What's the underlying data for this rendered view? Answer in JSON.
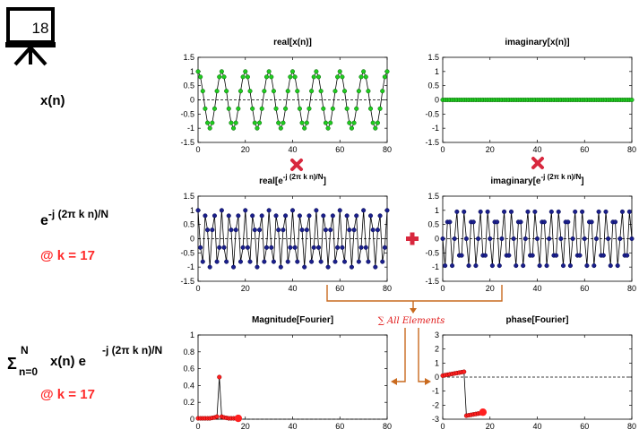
{
  "slide": {
    "number": "18"
  },
  "rows": {
    "xn": {
      "label": "x(n)"
    },
    "kernel": {
      "base": "e",
      "exponent": "-j (2π k n)/N",
      "k_note": "@ k = 17"
    },
    "sum": {
      "sigma": "Σ",
      "upper": "N",
      "lower": "n=0",
      "body": "x(n) e",
      "exponent": "-j (2π k n)/N",
      "k_note": "@ k = 17"
    }
  },
  "annotations": {
    "sum_all": "∑ All Elements"
  },
  "colors": {
    "green": "#1fcc1f",
    "navy": "#1a1f8c",
    "red": "#ff2020",
    "orange": "#c96a1e",
    "cross": "#d8283e"
  },
  "chart_data": [
    {
      "id": "real-xn",
      "type": "line",
      "title": "real[x(n)]",
      "xlim": [
        0,
        80
      ],
      "ylim": [
        -1.5,
        1.5
      ],
      "xticks": [
        "0",
        "20",
        "40",
        "60",
        "80"
      ],
      "yticks": [
        "1.5",
        "1",
        "0.5",
        "0",
        "-0.5",
        "-1",
        "-1.5"
      ],
      "series": [
        {
          "x": [
            0,
            1,
            2,
            3,
            4,
            5,
            6,
            7,
            8,
            9,
            10,
            11,
            12,
            13,
            14,
            15,
            16,
            17,
            18,
            19,
            20,
            21,
            22,
            23,
            24,
            25,
            26,
            27,
            28,
            29,
            30,
            31,
            32,
            33,
            34,
            35,
            36,
            37,
            38,
            39,
            40,
            41,
            42,
            43,
            44,
            45,
            46,
            47,
            48,
            49,
            50,
            51,
            52,
            53,
            54,
            55,
            56,
            57,
            58,
            59,
            60,
            61,
            62,
            63,
            64,
            65,
            66,
            67,
            68,
            69,
            70,
            71,
            72,
            73,
            74,
            75,
            76,
            77,
            78,
            79,
            80
          ],
          "y": [
            1,
            0.81,
            0.31,
            -0.31,
            -0.81,
            -1,
            -0.81,
            -0.31,
            0.31,
            0.81,
            1,
            0.81,
            0.31,
            -0.31,
            -0.81,
            -1,
            -0.81,
            -0.31,
            0.31,
            0.81,
            1,
            0.81,
            0.31,
            -0.31,
            -0.81,
            -1,
            -0.81,
            -0.31,
            0.31,
            0.81,
            1,
            0.81,
            0.31,
            -0.31,
            -0.81,
            -1,
            -0.81,
            -0.31,
            0.31,
            0.81,
            1,
            0.81,
            0.31,
            -0.31,
            -0.81,
            -1,
            -0.81,
            -0.31,
            0.31,
            0.81,
            1,
            0.81,
            0.31,
            -0.31,
            -0.81,
            -1,
            -0.81,
            -0.31,
            0.31,
            0.81,
            1,
            0.81,
            0.31,
            -0.31,
            -0.81,
            -1,
            -0.81,
            -0.31,
            0.31,
            0.81,
            1,
            0.81,
            0.31,
            -0.31,
            -0.81,
            -1,
            -0.81,
            -0.31,
            0.31,
            0.81,
            1
          ]
        }
      ]
    },
    {
      "id": "imag-xn",
      "type": "line",
      "title": "imaginary[x(n)]",
      "xlim": [
        0,
        80
      ],
      "ylim": [
        -1.5,
        1.5
      ],
      "xticks": [
        "0",
        "20",
        "40",
        "60",
        "80"
      ],
      "yticks": [
        "1.5",
        "1",
        "0.5",
        "0",
        "-0.5",
        "-1",
        "-1.5"
      ],
      "series": [
        {
          "x": [
            0,
            1,
            2,
            3,
            4,
            5,
            6,
            7,
            8,
            9,
            10,
            11,
            12,
            13,
            14,
            15,
            16,
            17,
            18,
            19,
            20,
            21,
            22,
            23,
            24,
            25,
            26,
            27,
            28,
            29,
            30,
            31,
            32,
            33,
            34,
            35,
            36,
            37,
            38,
            39,
            40,
            41,
            42,
            43,
            44,
            45,
            46,
            47,
            48,
            49,
            50,
            51,
            52,
            53,
            54,
            55,
            56,
            57,
            58,
            59,
            60,
            61,
            62,
            63,
            64,
            65,
            66,
            67,
            68,
            69,
            70,
            71,
            72,
            73,
            74,
            75,
            76,
            77,
            78,
            79,
            80
          ],
          "y": [
            0,
            0,
            0,
            0,
            0,
            0,
            0,
            0,
            0,
            0,
            0,
            0,
            0,
            0,
            0,
            0,
            0,
            0,
            0,
            0,
            0,
            0,
            0,
            0,
            0,
            0,
            0,
            0,
            0,
            0,
            0,
            0,
            0,
            0,
            0,
            0,
            0,
            0,
            0,
            0,
            0,
            0,
            0,
            0,
            0,
            0,
            0,
            0,
            0,
            0,
            0,
            0,
            0,
            0,
            0,
            0,
            0,
            0,
            0,
            0,
            0,
            0,
            0,
            0,
            0,
            0,
            0,
            0,
            0,
            0,
            0,
            0,
            0,
            0,
            0,
            0,
            0,
            0,
            0,
            0,
            0
          ]
        }
      ]
    },
    {
      "id": "real-kernel",
      "type": "line",
      "title": {
        "prefix": "real[e",
        "sup": "-j (2π k n)/N",
        "suffix": "]"
      },
      "xlim": [
        0,
        80
      ],
      "ylim": [
        -1.5,
        1.5
      ],
      "xticks": [
        "0",
        "20",
        "40",
        "60",
        "80"
      ],
      "yticks": [
        "1.5",
        "1",
        "0.5",
        "0",
        "-0.5",
        "-1",
        "-1.5"
      ],
      "series": [
        {
          "x": [
            0,
            1,
            2,
            3,
            4,
            5,
            6,
            7,
            8,
            9,
            10,
            11,
            12,
            13,
            14,
            15,
            16,
            17,
            18,
            19,
            20,
            21,
            22,
            23,
            24,
            25,
            26,
            27,
            28,
            29,
            30,
            31,
            32,
            33,
            34,
            35,
            36,
            37,
            38,
            39,
            40,
            41,
            42,
            43,
            44,
            45,
            46,
            47,
            48,
            49,
            50,
            51,
            52,
            53,
            54,
            55,
            56,
            57,
            58,
            59,
            60,
            61,
            62,
            63,
            64,
            65,
            66,
            67,
            68,
            69,
            70,
            71,
            72,
            73,
            74,
            75,
            76,
            77,
            78,
            79,
            80
          ],
          "y": [
            1,
            -0.31,
            -0.81,
            0.81,
            0.31,
            -1,
            0.31,
            0.81,
            -0.81,
            -0.31,
            1,
            -0.31,
            -0.81,
            0.81,
            0.31,
            -1,
            0.31,
            0.81,
            -0.81,
            -0.31,
            1,
            -0.31,
            -0.81,
            0.81,
            0.31,
            -1,
            0.31,
            0.81,
            -0.81,
            -0.31,
            1,
            -0.31,
            -0.81,
            0.81,
            0.31,
            -1,
            0.31,
            0.81,
            -0.81,
            -0.31,
            1,
            -0.31,
            -0.81,
            0.81,
            0.31,
            -1,
            0.31,
            0.81,
            -0.81,
            -0.31,
            1,
            -0.31,
            -0.81,
            0.81,
            0.31,
            -1,
            0.31,
            0.81,
            -0.81,
            -0.31,
            1,
            -0.31,
            -0.81,
            0.81,
            0.31,
            -1,
            0.31,
            0.81,
            -0.81,
            -0.31,
            1,
            -0.31,
            -0.81,
            0.81,
            0.31,
            -1,
            0.31,
            0.81,
            -0.81,
            -0.31,
            1
          ]
        }
      ]
    },
    {
      "id": "imag-kernel",
      "type": "line",
      "title": {
        "prefix": "imaginary[e",
        "sup": "-j (2π k n)/N",
        "suffix": "]"
      },
      "xlim": [
        0,
        80
      ],
      "ylim": [
        -1.5,
        1.5
      ],
      "xticks": [
        "0",
        "20",
        "40",
        "60",
        "80"
      ],
      "yticks": [
        "1.5",
        "1",
        "0.5",
        "0",
        "-0.5",
        "-1",
        "-1.5"
      ],
      "series": [
        {
          "x": [
            0,
            1,
            2,
            3,
            4,
            5,
            6,
            7,
            8,
            9,
            10,
            11,
            12,
            13,
            14,
            15,
            16,
            17,
            18,
            19,
            20,
            21,
            22,
            23,
            24,
            25,
            26,
            27,
            28,
            29,
            30,
            31,
            32,
            33,
            34,
            35,
            36,
            37,
            38,
            39,
            40,
            41,
            42,
            43,
            44,
            45,
            46,
            47,
            48,
            49,
            50,
            51,
            52,
            53,
            54,
            55,
            56,
            57,
            58,
            59,
            60,
            61,
            62,
            63,
            64,
            65,
            66,
            67,
            68,
            69,
            70,
            71,
            72,
            73,
            74,
            75,
            76,
            77,
            78,
            79,
            80
          ],
          "y": [
            0,
            -0.95,
            0.59,
            0.59,
            -0.95,
            0,
            0.95,
            -0.59,
            -0.59,
            0.95,
            0,
            -0.95,
            0.59,
            0.59,
            -0.95,
            0,
            0.95,
            -0.59,
            -0.59,
            0.95,
            0,
            -0.95,
            0.59,
            0.59,
            -0.95,
            0,
            0.95,
            -0.59,
            -0.59,
            0.95,
            0,
            -0.95,
            0.59,
            0.59,
            -0.95,
            0,
            0.95,
            -0.59,
            -0.59,
            0.95,
            0,
            -0.95,
            0.59,
            0.59,
            -0.95,
            0,
            0.95,
            -0.59,
            -0.59,
            0.95,
            0,
            -0.95,
            0.59,
            0.59,
            -0.95,
            0,
            0.95,
            -0.59,
            -0.59,
            0.95,
            0,
            -0.95,
            0.59,
            0.59,
            -0.95,
            0,
            0.95,
            -0.59,
            -0.59,
            0.95,
            0,
            -0.95,
            0.59,
            0.59,
            -0.95,
            0,
            0.95,
            -0.59,
            -0.59,
            0.95,
            0
          ]
        }
      ]
    },
    {
      "id": "magnitude",
      "type": "line",
      "title": "Magnitude[Fourier]",
      "xlim": [
        0,
        80
      ],
      "ylim": [
        0,
        1
      ],
      "xticks": [
        "0",
        "20",
        "40",
        "60",
        "80"
      ],
      "yticks": [
        "1",
        "0.8",
        "0.6",
        "0.4",
        "0.2",
        "0"
      ],
      "series": [
        {
          "x": [
            0,
            1,
            2,
            3,
            4,
            5,
            6,
            7,
            8,
            9,
            10,
            11,
            12,
            13,
            14,
            15,
            16,
            17
          ],
          "y": [
            0.01,
            0.01,
            0.01,
            0.01,
            0.01,
            0.01,
            0.015,
            0.02,
            0.03,
            0.5,
            0.03,
            0.02,
            0.015,
            0.01,
            0.01,
            0.01,
            0.01,
            0.01
          ]
        }
      ],
      "highlight": {
        "x": 17,
        "y": 0.01
      }
    },
    {
      "id": "phase",
      "type": "line",
      "title": "phase[Fourier]",
      "xlim": [
        0,
        80
      ],
      "ylim": [
        -3,
        3
      ],
      "xticks": [
        "0",
        "20",
        "40",
        "60",
        "80"
      ],
      "yticks": [
        "3",
        "2",
        "1",
        "0",
        "-1",
        "-2",
        "-3"
      ],
      "series": [
        {
          "x": [
            0,
            1,
            2,
            3,
            4,
            5,
            6,
            7,
            8,
            9,
            10,
            11,
            12,
            13,
            14,
            15,
            16,
            17
          ],
          "y": [
            0.1,
            0.14,
            0.17,
            0.2,
            0.23,
            0.26,
            0.29,
            0.32,
            0.35,
            0.38,
            -2.75,
            -2.72,
            -2.69,
            -2.66,
            -2.63,
            -2.6,
            -2.57,
            -2.5
          ]
        }
      ],
      "highlight": {
        "x": 17,
        "y": -2.5
      }
    }
  ]
}
